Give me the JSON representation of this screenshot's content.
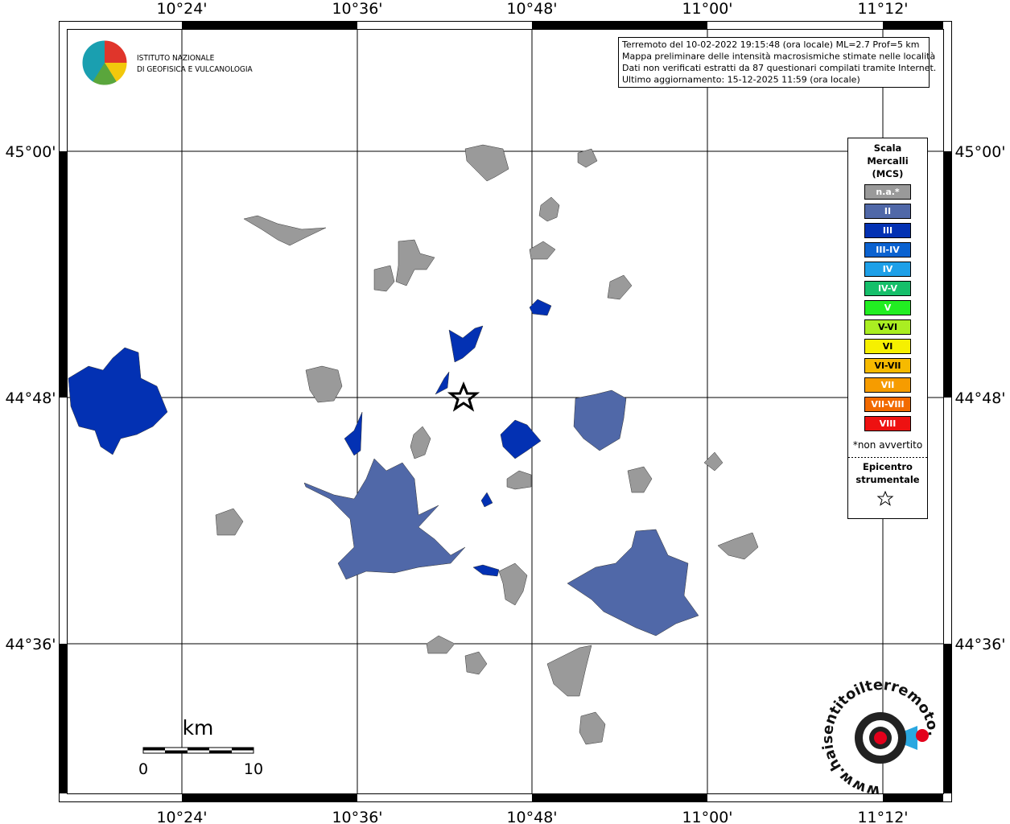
{
  "title_lines": [
    "Terremoto del 10-02-2022 19:15:48 (ora locale) ML=2.7 Prof=5 km",
    "Mappa preliminare delle intensità macrosismiche stimate nelle località",
    "Dati non verificati estratti da 87 questionari compilati tramite Internet.",
    "Ultimo aggiornamento: 15-12-2025 11:59 (ora locale)"
  ],
  "longitude_labels": [
    "10°24'",
    "10°36'",
    "10°48'",
    "11°00'",
    "11°12'"
  ],
  "latitude_labels": [
    "45°00'",
    "44°48'",
    "44°36'"
  ],
  "institute": [
    "ISTITUTO NAZIONALE",
    "DI GEOFISICA E VULCANOLOGIA"
  ],
  "legend": {
    "title": [
      "Scala",
      "Mercalli",
      "(MCS)"
    ],
    "items": [
      {
        "label": "n.a.*",
        "color": "#9a9a9a"
      },
      {
        "label": "II",
        "color": "#5068a8"
      },
      {
        "label": "III",
        "color": "#0331b3"
      },
      {
        "label": "III-IV",
        "color": "#0b62d0"
      },
      {
        "label": "IV",
        "color": "#1ea0e8"
      },
      {
        "label": "IV-V",
        "color": "#16bf6a"
      },
      {
        "label": "V",
        "color": "#22ee22"
      },
      {
        "label": "V-VI",
        "color": "#aaee22"
      },
      {
        "label": "VI",
        "color": "#f6f000"
      },
      {
        "label": "VI-VII",
        "color": "#f6ba00"
      },
      {
        "label": "VII",
        "color": "#f69c00"
      },
      {
        "label": "VII-VIII",
        "color": "#f26a00"
      },
      {
        "label": "VIII",
        "color": "#ee1111"
      }
    ],
    "note": "*non avvertito",
    "epicenter_title": [
      "Epicentro",
      "strumentale"
    ]
  },
  "scale_bar": {
    "unit": "km",
    "labels": [
      "0",
      "10"
    ]
  },
  "site": "www.haisentitoilterremoto.it"
}
